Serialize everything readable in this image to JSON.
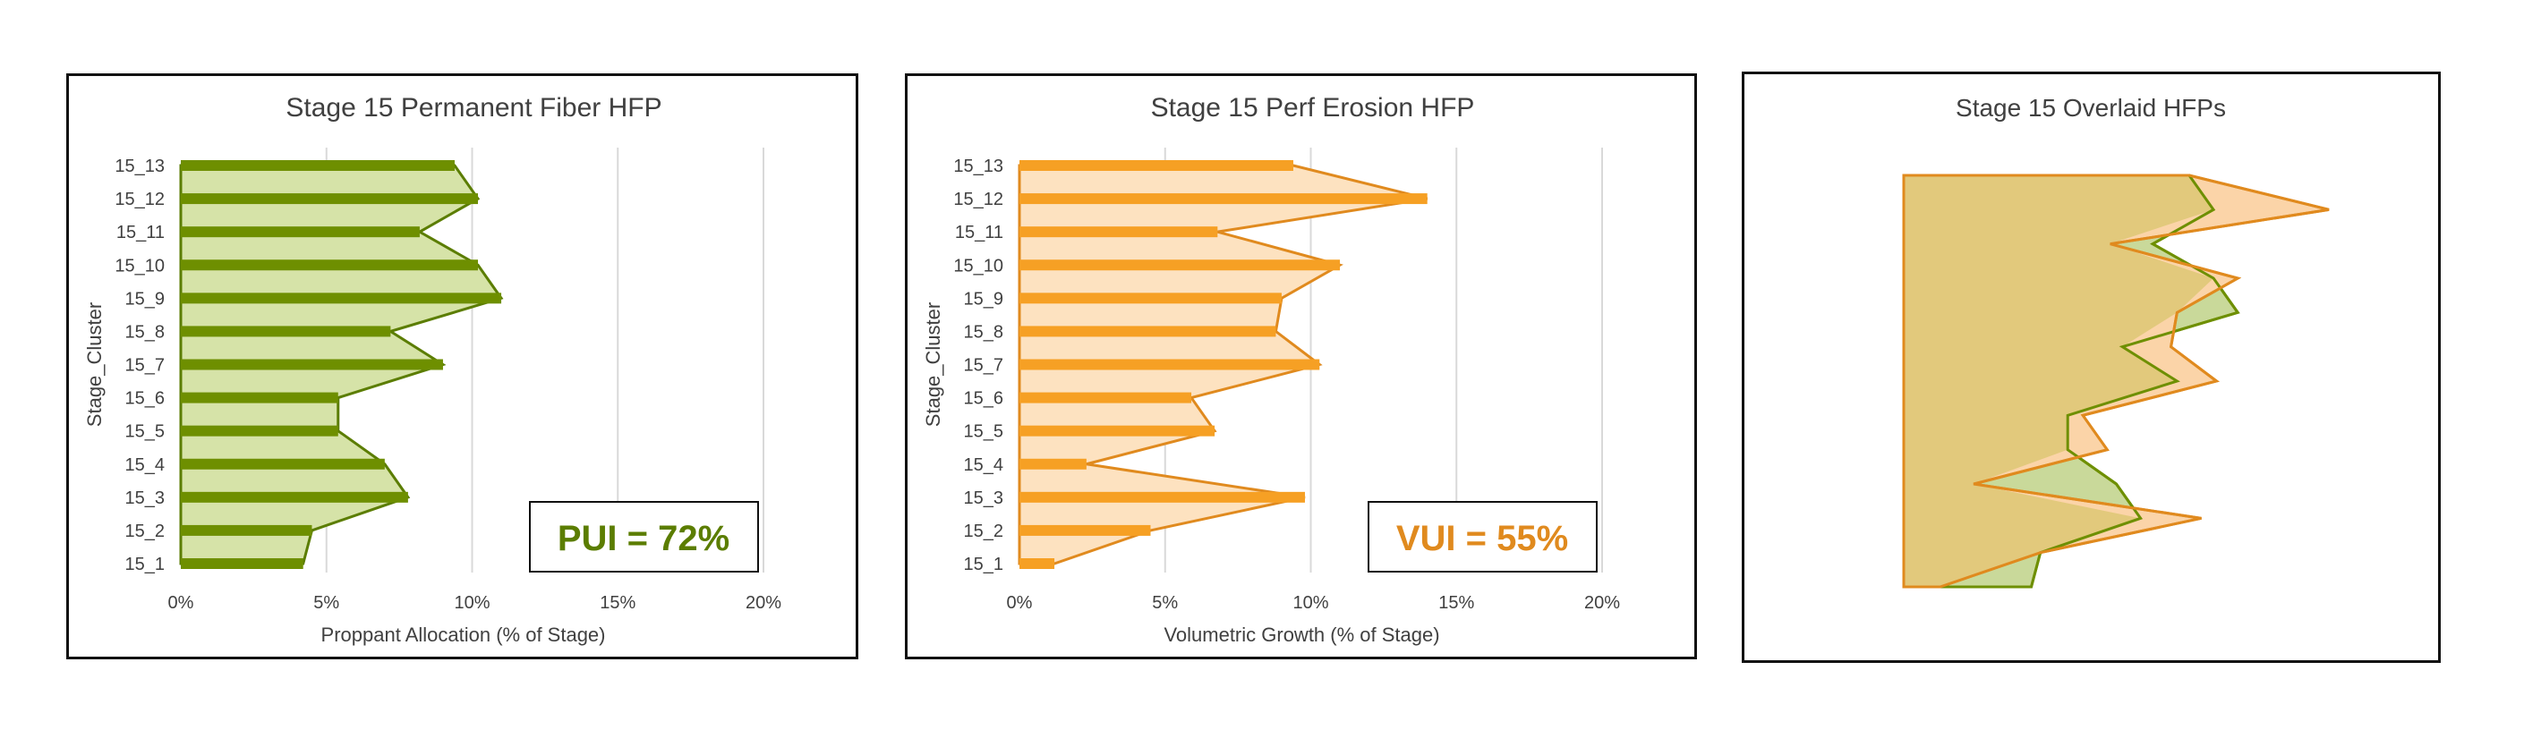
{
  "chart_data": [
    {
      "type": "bar",
      "title": "Stage 15 Permanent Fiber HFP",
      "xlabel": "Proppant Allocation (% of Stage)",
      "ylabel": "Stage_Cluster",
      "orientation": "horizontal",
      "categories": [
        "15_1",
        "15_2",
        "15_3",
        "15_4",
        "15_5",
        "15_6",
        "15_7",
        "15_8",
        "15_9",
        "15_10",
        "15_11",
        "15_12",
        "15_13"
      ],
      "values": [
        4.2,
        4.5,
        7.8,
        7.0,
        5.4,
        5.4,
        9.0,
        7.2,
        11.0,
        10.2,
        8.2,
        10.2,
        9.4
      ],
      "xticks": [
        "0%",
        "5%",
        "10%",
        "15%",
        "20%"
      ],
      "xlim": [
        0,
        20
      ],
      "grid": true,
      "annotation": "PUI = 72%",
      "colors": {
        "bar": "#6e8f00",
        "fill": "#d6e3a8",
        "line": "#5b7d00",
        "annotation": "#5b7d00"
      }
    },
    {
      "type": "bar",
      "title": "Stage 15 Perf Erosion HFP",
      "xlabel": "Volumetric Growth (% of Stage)",
      "ylabel": "Stage_Cluster",
      "orientation": "horizontal",
      "categories": [
        "15_1",
        "15_2",
        "15_3",
        "15_4",
        "15_5",
        "15_6",
        "15_7",
        "15_8",
        "15_9",
        "15_10",
        "15_11",
        "15_12",
        "15_13"
      ],
      "values": [
        1.2,
        4.5,
        9.8,
        2.3,
        6.7,
        5.9,
        10.3,
        8.8,
        9.0,
        11.0,
        6.8,
        14.0,
        9.4
      ],
      "xticks": [
        "0%",
        "5%",
        "10%",
        "15%",
        "20%"
      ],
      "xlim": [
        0,
        20
      ],
      "grid": true,
      "annotation": "VUI = 55%",
      "colors": {
        "bar": "#f6a024",
        "fill": "#fde2c0",
        "line": "#e08a1e",
        "annotation": "#e08a1e"
      }
    },
    {
      "type": "area",
      "title": "Stage 15 Overlaid HFPs",
      "series": [
        {
          "values": [
            4.2,
            4.5,
            7.8,
            7.0,
            5.4,
            5.4,
            9.0,
            7.2,
            11.0,
            10.2,
            8.2,
            10.2,
            9.4
          ],
          "color": "#6e8f00",
          "fill": "#c9d99a"
        },
        {
          "values": [
            1.2,
            4.5,
            9.8,
            2.3,
            6.7,
            5.9,
            10.3,
            8.8,
            9.0,
            11.0,
            6.8,
            14.0,
            9.4
          ],
          "color": "#e08a1e",
          "fill": "#fbd4a8"
        }
      ],
      "overlap_fill": "#e2c97c",
      "xlim": [
        0,
        14
      ]
    }
  ]
}
